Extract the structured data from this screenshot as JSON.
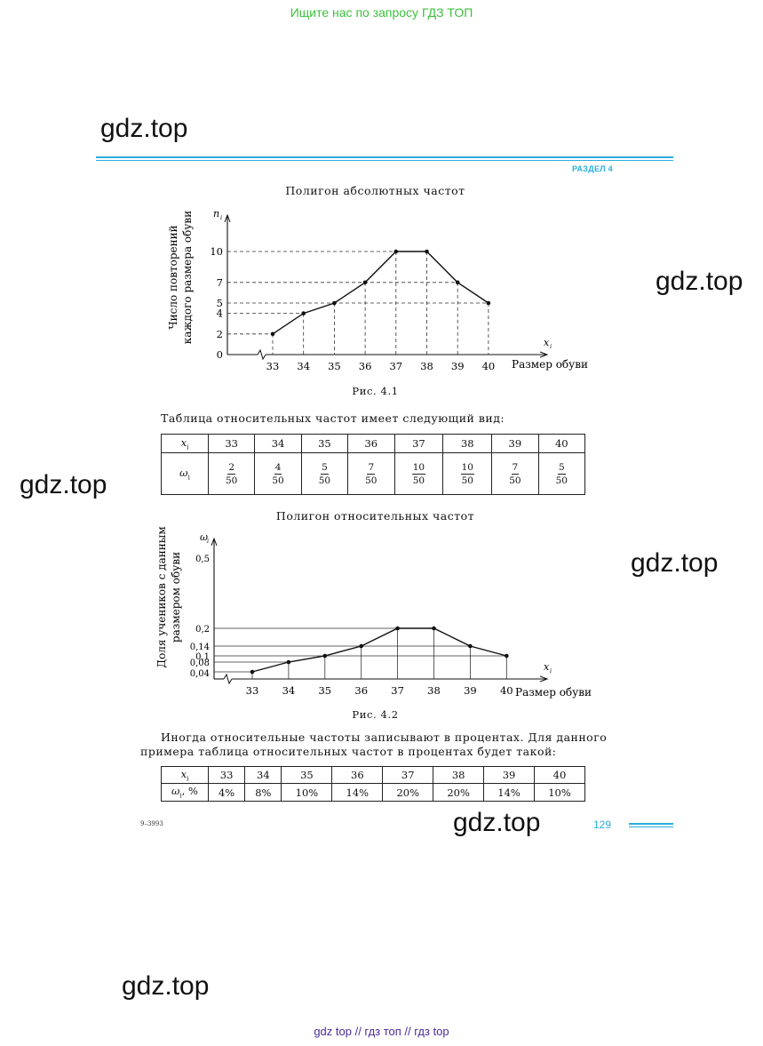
{
  "top_link": "Ищите нас по запросу ГДЗ ТОП",
  "watermark": "gdz.top",
  "section_label": "РАЗДЕЛ 4",
  "chart1": {
    "title": "Полигон абсолютных частот",
    "y_axis_symbol": "n",
    "y_axis_sub": "i",
    "x_axis_symbol": "x",
    "x_axis_sub": "i",
    "y_label_line1": "Число повторений",
    "y_label_line2": "каждого размера обуви",
    "x_label": "Размер обуви",
    "y_ticks": [
      "0",
      "2",
      "4",
      "5",
      "7",
      "10"
    ],
    "x_ticks": [
      "33",
      "34",
      "35",
      "36",
      "37",
      "38",
      "39",
      "40"
    ],
    "caption": "Рис. 4.1"
  },
  "chart2": {
    "title": "Полигон относительных частот",
    "y_axis_symbol": "ω",
    "y_axis_sub": "i",
    "x_axis_symbol": "x",
    "x_axis_sub": "i",
    "y_label_line1": "Доля учеников с данным",
    "y_label_line2": "размером обуви",
    "x_label": "Размер обуви",
    "y_ticks": [
      "0,04",
      "0,08",
      "0,1",
      "0,14",
      "0,2",
      "0,5"
    ],
    "x_ticks": [
      "33",
      "34",
      "35",
      "36",
      "37",
      "38",
      "39",
      "40"
    ],
    "caption": "Рис. 4.2"
  },
  "chart_data": [
    {
      "type": "line",
      "title": "Полигон абсолютных частот",
      "xlabel": "Размер обуви",
      "ylabel": "Число повторений каждого размера обуви",
      "x": [
        33,
        34,
        35,
        36,
        37,
        38,
        39,
        40
      ],
      "series": [
        {
          "values": [
            2,
            4,
            5,
            7,
            10,
            10,
            7,
            5
          ]
        }
      ],
      "ylim": [
        0,
        11
      ],
      "grid": false
    },
    {
      "type": "line",
      "title": "Полигон относительных частот",
      "xlabel": "Размер обуви",
      "ylabel": "Доля учеников с данным размером обуви",
      "x": [
        33,
        34,
        35,
        36,
        37,
        38,
        39,
        40
      ],
      "series": [
        {
          "values": [
            0.04,
            0.08,
            0.1,
            0.14,
            0.2,
            0.2,
            0.14,
            0.1
          ]
        }
      ],
      "ylim": [
        0,
        0.55
      ],
      "grid": false
    }
  ],
  "table_intro": "Таблица относительных частот имеет следующий вид:",
  "table1": {
    "row1_header": "x",
    "row1_header_sub": "i",
    "row2_header": "ω",
    "row2_header_sub": "i",
    "x_values": [
      "33",
      "34",
      "35",
      "36",
      "37",
      "38",
      "39",
      "40"
    ],
    "numerators": [
      "2",
      "4",
      "5",
      "7",
      "10",
      "10",
      "7",
      "5"
    ],
    "denominators": [
      "50",
      "50",
      "50",
      "50",
      "50",
      "50",
      "50",
      "50"
    ]
  },
  "paragraph_line1": "Иногда относительные частоты записывают в процентах. Для данного",
  "paragraph_line2": "примера таблица относительных частот в процентах будет такой:",
  "table2": {
    "row1_header": "x",
    "row1_header_sub": "i",
    "row2_header": "ω",
    "row2_header_sub": "i",
    "row2_header_suffix": ", %",
    "x_values": [
      "33",
      "34",
      "35",
      "36",
      "37",
      "38",
      "39",
      "40"
    ],
    "percents": [
      "4%",
      "8%",
      "10%",
      "14%",
      "20%",
      "20%",
      "14%",
      "10%"
    ]
  },
  "page_number": "129",
  "print_code": "9–3993",
  "footer_links": "gdz top  //  гдз топ  //  гдз top",
  "colors": {
    "accent": "#2aaedc",
    "top_link": "#3cc03c",
    "footer_link": "#4b2b9a"
  }
}
